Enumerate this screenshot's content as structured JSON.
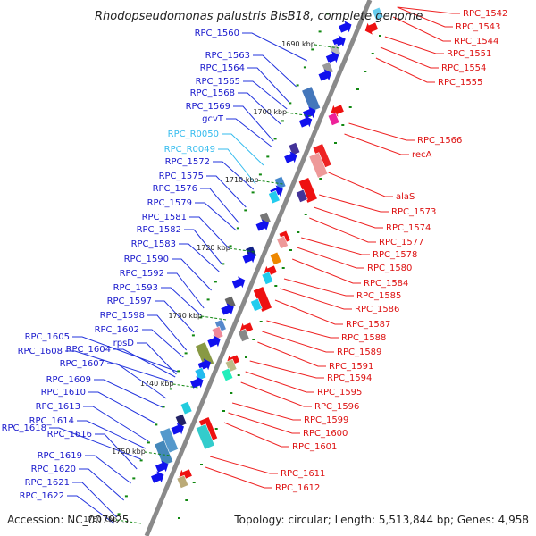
{
  "header": {
    "title": "Rhodopseudomonas palustris BisB18, complete genome"
  },
  "footer": {
    "accession": "Accession: NC_007925",
    "summary": "Topology: circular; Length: 5,513,844 bp; Genes: 4,958"
  },
  "colors": {
    "backbone": "#8a8a8a",
    "left_label": "#1a1acc",
    "rna_label": "#33bbee",
    "right_label": "#dd1111",
    "tick": "#118811",
    "left_leader": "#2233dd",
    "rna_leader": "#33bbee",
    "right_leader": "#ee2222"
  },
  "ticks": [
    "1690 kbp",
    "1700 kbp",
    "1710 kbp",
    "1720 kbp",
    "1730 kbp",
    "1740 kbp",
    "1750 kbp",
    "1760 kbp"
  ],
  "left_labels": [
    {
      "text": "RPC_1560",
      "color": "#1a1acc"
    },
    {
      "text": "RPC_1563",
      "color": "#1a1acc"
    },
    {
      "text": "RPC_1564",
      "color": "#1a1acc"
    },
    {
      "text": "RPC_1565",
      "color": "#1a1acc"
    },
    {
      "text": "RPC_1568",
      "color": "#1a1acc"
    },
    {
      "text": "RPC_1569",
      "color": "#1a1acc"
    },
    {
      "text": "gcvT",
      "color": "#1a1acc"
    },
    {
      "text": "RPC_R0050",
      "color": "#33bbee"
    },
    {
      "text": "RPC_R0049",
      "color": "#33bbee"
    },
    {
      "text": "RPC_1572",
      "color": "#1a1acc"
    },
    {
      "text": "RPC_1575",
      "color": "#1a1acc"
    },
    {
      "text": "RPC_1576",
      "color": "#1a1acc"
    },
    {
      "text": "RPC_1579",
      "color": "#1a1acc"
    },
    {
      "text": "RPC_1581",
      "color": "#1a1acc"
    },
    {
      "text": "RPC_1582",
      "color": "#1a1acc"
    },
    {
      "text": "RPC_1583",
      "color": "#1a1acc"
    },
    {
      "text": "RPC_1590",
      "color": "#1a1acc"
    },
    {
      "text": "RPC_1592",
      "color": "#1a1acc"
    },
    {
      "text": "RPC_1593",
      "color": "#1a1acc"
    },
    {
      "text": "RPC_1597",
      "color": "#1a1acc"
    },
    {
      "text": "RPC_1598",
      "color": "#1a1acc"
    },
    {
      "text": "RPC_1602",
      "color": "#1a1acc"
    },
    {
      "text": "rpsD",
      "color": "#1a1acc"
    },
    {
      "text": "RPC_1605",
      "color": "#1a1acc"
    },
    {
      "text": "RPC_1604",
      "color": "#1a1acc"
    },
    {
      "text": "RPC_1608",
      "color": "#1a1acc"
    },
    {
      "text": "RPC_1607",
      "color": "#1a1acc"
    },
    {
      "text": "RPC_1609",
      "color": "#1a1acc"
    },
    {
      "text": "RPC_1610",
      "color": "#1a1acc"
    },
    {
      "text": "RPC_1613",
      "color": "#1a1acc"
    },
    {
      "text": "RPC_1614",
      "color": "#1a1acc"
    },
    {
      "text": "RPC_1618",
      "color": "#1a1acc"
    },
    {
      "text": "RPC_1616",
      "color": "#1a1acc"
    },
    {
      "text": "RPC_1619",
      "color": "#1a1acc"
    },
    {
      "text": "RPC_1620",
      "color": "#1a1acc"
    },
    {
      "text": "RPC_1621",
      "color": "#1a1acc"
    },
    {
      "text": "RPC_1622",
      "color": "#1a1acc"
    }
  ],
  "right_labels": [
    {
      "text": "RPC_1542"
    },
    {
      "text": "RPC_1543"
    },
    {
      "text": "RPC_1544"
    },
    {
      "text": "RPC_1551"
    },
    {
      "text": "RPC_1554"
    },
    {
      "text": "RPC_1555"
    },
    {
      "text": "RPC_1566"
    },
    {
      "text": "recA"
    },
    {
      "text": "alaS"
    },
    {
      "text": "RPC_1573"
    },
    {
      "text": "RPC_1574"
    },
    {
      "text": "RPC_1577"
    },
    {
      "text": "RPC_1578"
    },
    {
      "text": "RPC_1580"
    },
    {
      "text": "RPC_1584"
    },
    {
      "text": "RPC_1585"
    },
    {
      "text": "RPC_1586"
    },
    {
      "text": "RPC_1587"
    },
    {
      "text": "RPC_1588"
    },
    {
      "text": "RPC_1589"
    },
    {
      "text": "RPC_1591"
    },
    {
      "text": "RPC_1594"
    },
    {
      "text": "RPC_1595"
    },
    {
      "text": "RPC_1596"
    },
    {
      "text": "RPC_1599"
    },
    {
      "text": "RPC_1600"
    },
    {
      "text": "RPC_1601"
    },
    {
      "text": "RPC_1611"
    },
    {
      "text": "RPC_1612"
    }
  ],
  "features": [
    {
      "t": 36,
      "side": "outer",
      "kind": "arrow",
      "color": "#1111ee"
    },
    {
      "t": 52,
      "side": "outer",
      "kind": "arrow",
      "color": "#1111ee"
    },
    {
      "t": 62,
      "side": "outer",
      "kind": "box",
      "color": "#bbbbbb"
    },
    {
      "t": 70,
      "side": "outer",
      "kind": "arrow",
      "color": "#1111ee"
    },
    {
      "t": 82,
      "side": "outer",
      "kind": "box",
      "color": "#999999"
    },
    {
      "t": 90,
      "side": "outer",
      "kind": "arrow",
      "color": "#1111ee"
    },
    {
      "t": 118,
      "side": "outer",
      "kind": "bigbox",
      "color": "#4477bb"
    },
    {
      "t": 132,
      "side": "outer",
      "kind": "arrow",
      "color": "#1111ee"
    },
    {
      "t": 142,
      "side": "outer",
      "kind": "arrow",
      "color": "#1111ee"
    },
    {
      "t": 172,
      "side": "outer",
      "kind": "box",
      "color": "#443399"
    },
    {
      "t": 182,
      "side": "outer",
      "kind": "arrow",
      "color": "#1111ee"
    },
    {
      "t": 210,
      "side": "outer",
      "kind": "box",
      "color": "#4488cc"
    },
    {
      "t": 220,
      "side": "outer",
      "kind": "arrow",
      "color": "#1111ee"
    },
    {
      "t": 226,
      "side": "outer",
      "kind": "box",
      "color": "#22ccee"
    },
    {
      "t": 250,
      "side": "outer",
      "kind": "box",
      "color": "#777777"
    },
    {
      "t": 258,
      "side": "outer",
      "kind": "arrow",
      "color": "#1111ee"
    },
    {
      "t": 288,
      "side": "outer",
      "kind": "box",
      "color": "#112288"
    },
    {
      "t": 294,
      "side": "outer",
      "kind": "arrow",
      "color": "#1111ee"
    },
    {
      "t": 322,
      "side": "outer",
      "kind": "arrow",
      "color": "#1111ee"
    },
    {
      "t": 344,
      "side": "outer",
      "kind": "box",
      "color": "#666666"
    },
    {
      "t": 352,
      "side": "outer",
      "kind": "arrow",
      "color": "#1111ee"
    },
    {
      "t": 370,
      "side": "outer",
      "kind": "box",
      "color": "#5588cc"
    },
    {
      "t": 378,
      "side": "outer",
      "kind": "box",
      "color": "#ee8899"
    },
    {
      "t": 388,
      "side": "outer",
      "kind": "arrow",
      "color": "#1111ee"
    },
    {
      "t": 404,
      "side": "outer",
      "kind": "bigbox",
      "color": "#889944"
    },
    {
      "t": 414,
      "side": "outer",
      "kind": "arrow",
      "color": "#1111ee"
    },
    {
      "t": 424,
      "side": "outer",
      "kind": "box",
      "color": "#22bbee"
    },
    {
      "t": 434,
      "side": "outer",
      "kind": "arrow",
      "color": "#1111ee"
    },
    {
      "t": 462,
      "side": "outer",
      "kind": "box",
      "color": "#22ccdd"
    },
    {
      "t": 476,
      "side": "outer",
      "kind": "box",
      "color": "#222266"
    },
    {
      "t": 486,
      "side": "outer",
      "kind": "arrow",
      "color": "#1111ee"
    },
    {
      "t": 500,
      "side": "outer",
      "kind": "bigbox",
      "color": "#5599cc"
    },
    {
      "t": 514,
      "side": "outer",
      "kind": "bigbox",
      "color": "#4488bb"
    },
    {
      "t": 528,
      "side": "outer",
      "kind": "arrow",
      "color": "#1111ee"
    },
    {
      "t": 540,
      "side": "outer",
      "kind": "arrow",
      "color": "#1111ee"
    },
    {
      "t": 10,
      "side": "inner",
      "kind": "box",
      "color": "#66ccee"
    },
    {
      "t": 26,
      "side": "inner",
      "kind": "arrow",
      "color": "#ee1111"
    },
    {
      "t": 118,
      "side": "inner",
      "kind": "arrow",
      "color": "#ee1111"
    },
    {
      "t": 128,
      "side": "inner",
      "kind": "box",
      "color": "#ee2299"
    },
    {
      "t": 168,
      "side": "inner",
      "kind": "bigbox",
      "color": "#ee2222"
    },
    {
      "t": 178,
      "side": "inner",
      "kind": "bigbox",
      "color": "#ee9999"
    },
    {
      "t": 206,
      "side": "inner",
      "kind": "bigbox",
      "color": "#ee1111"
    },
    {
      "t": 214,
      "side": "inner",
      "kind": "box",
      "color": "#443399"
    },
    {
      "t": 260,
      "side": "inner",
      "kind": "box",
      "color": "#ee1111"
    },
    {
      "t": 266,
      "side": "inner",
      "kind": "box",
      "color": "#ee9999"
    },
    {
      "t": 284,
      "side": "inner",
      "kind": "box",
      "color": "#ee8800"
    },
    {
      "t": 298,
      "side": "inner",
      "kind": "arrow",
      "color": "#ee1111"
    },
    {
      "t": 306,
      "side": "inner",
      "kind": "box",
      "color": "#22ccee"
    },
    {
      "t": 328,
      "side": "inner",
      "kind": "bigbox",
      "color": "#ee1111"
    },
    {
      "t": 336,
      "side": "inner",
      "kind": "box",
      "color": "#22ccee"
    },
    {
      "t": 362,
      "side": "inner",
      "kind": "arrow",
      "color": "#ee1111"
    },
    {
      "t": 370,
      "side": "inner",
      "kind": "box",
      "color": "#888888"
    },
    {
      "t": 398,
      "side": "inner",
      "kind": "arrow",
      "color": "#ee1111"
    },
    {
      "t": 404,
      "side": "inner",
      "kind": "box",
      "color": "#bbbb88"
    },
    {
      "t": 414,
      "side": "inner",
      "kind": "box",
      "color": "#22eebb"
    },
    {
      "t": 474,
      "side": "inner",
      "kind": "bigbox",
      "color": "#ee1111"
    },
    {
      "t": 482,
      "side": "inner",
      "kind": "bigbox",
      "color": "#33cccc"
    },
    {
      "t": 526,
      "side": "inner",
      "kind": "arrow",
      "color": "#ee1111"
    },
    {
      "t": 534,
      "side": "inner",
      "kind": "box",
      "color": "#bbaa77"
    }
  ]
}
